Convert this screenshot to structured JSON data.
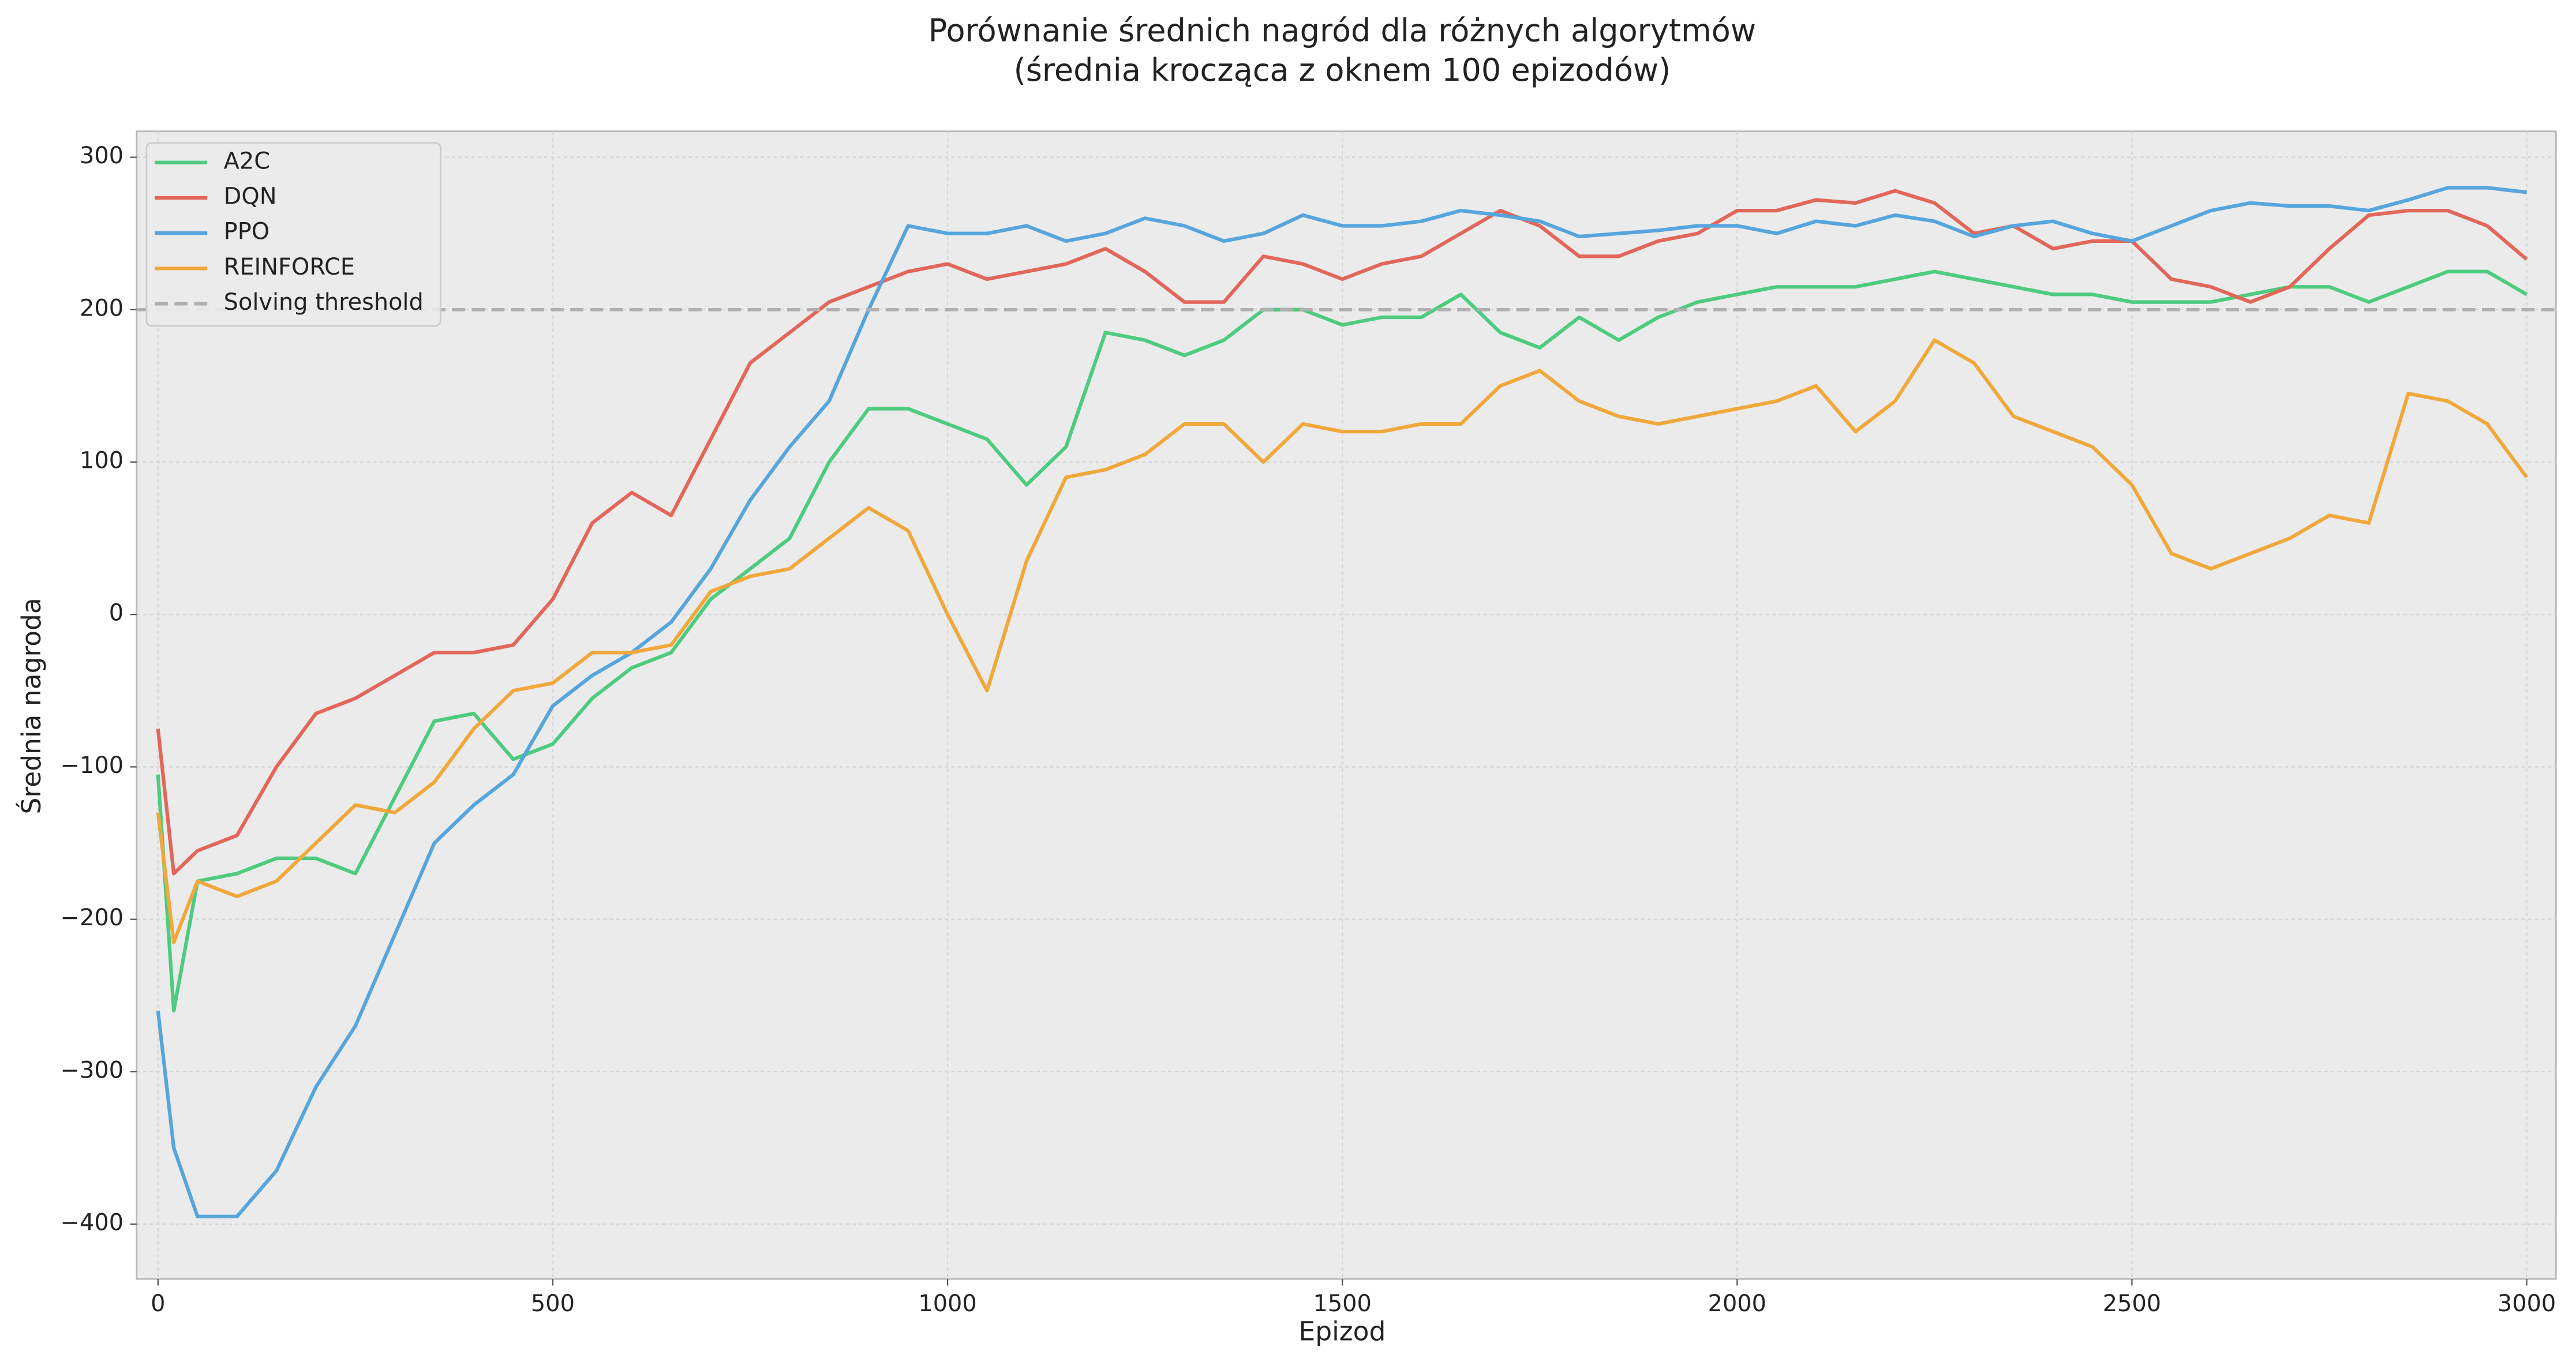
{
  "chart_data": {
    "type": "line",
    "title": [
      "Porównanie średnich nagród dla różnych algorytmów",
      "(średnia krocząca z oknem 100 epizodów)"
    ],
    "xlabel": "Epizod",
    "ylabel": "Średnia nagroda",
    "x": [
      0,
      20,
      50,
      100,
      150,
      200,
      250,
      300,
      350,
      400,
      450,
      500,
      550,
      600,
      650,
      700,
      750,
      800,
      850,
      900,
      950,
      1000,
      1050,
      1100,
      1150,
      1200,
      1250,
      1300,
      1350,
      1400,
      1450,
      1500,
      1550,
      1600,
      1650,
      1700,
      1750,
      1800,
      1850,
      1900,
      1950,
      2000,
      2050,
      2100,
      2150,
      2200,
      2250,
      2300,
      2350,
      2400,
      2450,
      2500,
      2550,
      2600,
      2650,
      2700,
      2750,
      2800,
      2850,
      2900,
      2950,
      3000
    ],
    "series": [
      {
        "name": "A2C",
        "color": "#4ecb7f",
        "values": [
          -105,
          -260,
          -175,
          -170,
          -160,
          -160,
          -170,
          -120,
          -70,
          -65,
          -95,
          -85,
          -55,
          -35,
          -25,
          10,
          30,
          50,
          100,
          135,
          135,
          125,
          115,
          85,
          110,
          185,
          180,
          170,
          180,
          200,
          200,
          190,
          195,
          195,
          210,
          185,
          175,
          195,
          180,
          195,
          205,
          210,
          215,
          215,
          215,
          220,
          225,
          220,
          215,
          210,
          210,
          205,
          205,
          205,
          210,
          215,
          215,
          205,
          215,
          225,
          225,
          210
        ]
      },
      {
        "name": "DQN",
        "color": "#e2675a",
        "values": [
          -75,
          -170,
          -155,
          -145,
          -100,
          -65,
          -55,
          -40,
          -25,
          -25,
          -20,
          10,
          60,
          80,
          65,
          115,
          165,
          185,
          205,
          215,
          225,
          230,
          220,
          225,
          230,
          240,
          225,
          205,
          205,
          235,
          230,
          220,
          230,
          235,
          250,
          265,
          255,
          235,
          235,
          245,
          250,
          265,
          265,
          272,
          270,
          278,
          270,
          250,
          255,
          240,
          245,
          245,
          220,
          215,
          205,
          215,
          240,
          262,
          265,
          265,
          255,
          233
        ]
      },
      {
        "name": "PPO",
        "color": "#56a5dc",
        "values": [
          -260,
          -350,
          -395,
          -395,
          -365,
          -310,
          -270,
          -210,
          -150,
          -125,
          -105,
          -60,
          -40,
          -25,
          -5,
          30,
          75,
          110,
          140,
          200,
          255,
          250,
          250,
          255,
          245,
          250,
          260,
          255,
          245,
          250,
          262,
          255,
          255,
          258,
          265,
          262,
          258,
          248,
          250,
          252,
          255,
          255,
          250,
          258,
          255,
          262,
          258,
          248,
          255,
          258,
          250,
          245,
          255,
          265,
          270,
          268,
          268,
          265,
          272,
          280,
          280,
          277
        ]
      },
      {
        "name": "REINFORCE",
        "color": "#f0a83c",
        "values": [
          -130,
          -215,
          -175,
          -185,
          -175,
          -150,
          -125,
          -130,
          -110,
          -75,
          -50,
          -45,
          -25,
          -25,
          -20,
          15,
          25,
          30,
          50,
          70,
          55,
          0,
          -50,
          35,
          90,
          95,
          105,
          125,
          125,
          100,
          125,
          120,
          120,
          125,
          125,
          150,
          160,
          140,
          130,
          125,
          130,
          135,
          140,
          150,
          120,
          140,
          180,
          165,
          130,
          120,
          110,
          85,
          40,
          30,
          40,
          50,
          65,
          60,
          145,
          140,
          125,
          90
        ]
      }
    ],
    "hlines": [
      {
        "name": "Solving threshold",
        "value": 200,
        "color": "#b0b0b0"
      }
    ],
    "xlim": [
      -27,
      3037
    ],
    "ylim": [
      -436,
      317
    ],
    "xticks": [
      0,
      500,
      1000,
      1500,
      2000,
      2500,
      3000
    ],
    "yticks": [
      {
        "value": -400,
        "label": "−400"
      },
      {
        "value": -300,
        "label": "−300"
      },
      {
        "value": -200,
        "label": "−200"
      },
      {
        "value": -100,
        "label": "−100"
      },
      0,
      100,
      200,
      300
    ],
    "grid": true,
    "legend": "upper left"
  }
}
